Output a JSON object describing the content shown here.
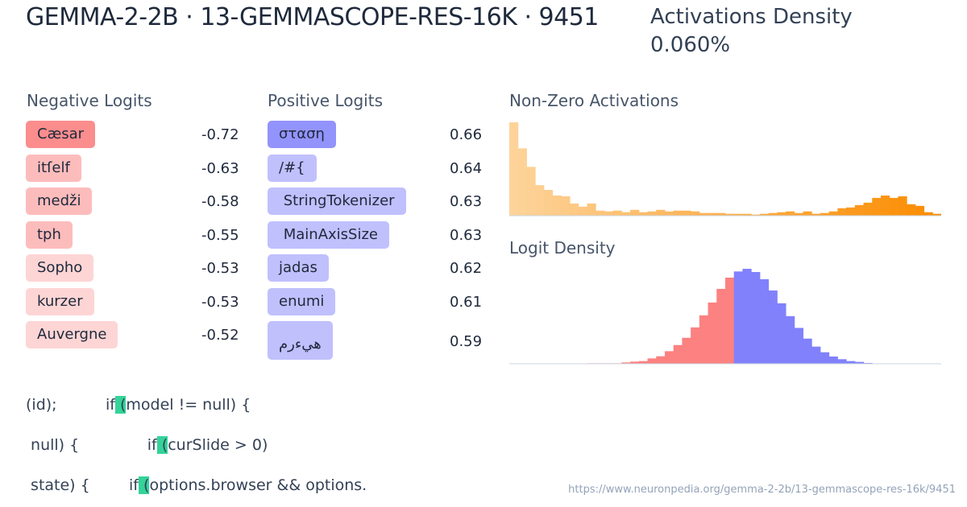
{
  "header": {
    "title": "GEMMA-2-2B · 13-GEMMASCOPE-RES-16K · 9451",
    "density_label": "Activations Density",
    "density_value": "0.060%"
  },
  "negative": {
    "label": "Negative Logits",
    "items": [
      {
        "token": "Cæsar",
        "value": "-0.72",
        "color": "#fc8d8d"
      },
      {
        "token": "itſelf",
        "value": "-0.63",
        "color": "#fdbcbc"
      },
      {
        "token": "medži",
        "value": "-0.58",
        "color": "#fdbcbc"
      },
      {
        "token": "tph",
        "value": "-0.55",
        "color": "#fdbcbc"
      },
      {
        "token": "Sopho",
        "value": "-0.53",
        "color": "#fed5d5"
      },
      {
        "token": "kurzer",
        "value": "-0.53",
        "color": "#fed5d5"
      },
      {
        "token": "Auvergne",
        "value": "-0.52",
        "color": "#fed5d5"
      }
    ]
  },
  "positive": {
    "label": "Positive Logits",
    "items": [
      {
        "token": "σταση",
        "value": "0.66",
        "color": "#9393fc"
      },
      {
        "token": "/#{",
        "value": "0.64",
        "color": "#c0c0fd"
      },
      {
        "token": " StringTokenizer",
        "value": "0.63",
        "color": "#c0c0fd"
      },
      {
        "token": " MainAxisSize",
        "value": "0.63",
        "color": "#c0c0fd"
      },
      {
        "token": "jadas",
        "value": "0.62",
        "color": "#c0c0fd"
      },
      {
        "token": "enumi",
        "value": "0.61",
        "color": "#c0c0fd"
      },
      {
        "token": "هيءرم",
        "value": "0.59",
        "color": "#c0c0fd"
      }
    ]
  },
  "activations": {
    "label": "Non-Zero Activations",
    "colors": [
      "#fdd39a",
      "#fb8c00"
    ],
    "values": [
      352,
      254,
      184,
      115,
      97,
      76,
      73,
      46,
      34,
      46,
      19,
      16,
      19,
      13,
      22,
      13,
      16,
      22,
      16,
      19,
      19,
      16,
      10,
      10,
      10,
      7,
      7,
      7,
      4,
      7,
      10,
      13,
      16,
      10,
      16,
      7,
      10,
      16,
      28,
      31,
      40,
      49,
      67,
      76,
      67,
      73,
      43,
      37,
      13,
      7
    ]
  },
  "logits": {
    "label": "Logit Density",
    "neg_color": "#fc8181",
    "pos_color": "#8181fc",
    "values": [
      0,
      0,
      0,
      0,
      0,
      0,
      0,
      0,
      0,
      2,
      2,
      2,
      2,
      5,
      8,
      10,
      20,
      28,
      47,
      70,
      97,
      136,
      181,
      229,
      280,
      322,
      345,
      355,
      343,
      316,
      274,
      226,
      178,
      134,
      94,
      64,
      43,
      27,
      17,
      10,
      7,
      3,
      1,
      1,
      1,
      1,
      0,
      0,
      0,
      0
    ]
  },
  "examples": [
    {
      "pre": "(id);          if",
      "hl": " (",
      "post": "model != null) {"
    },
    {
      "pre": " null) {              if",
      "hl": " (",
      "post": "curSlide > 0)"
    },
    {
      "pre": " state) {        if",
      "hl": " (",
      "post": "options.browser && options."
    }
  ],
  "url": "https://www.neuronpedia.org/gemma-2-2b/13-gemmascope-res-16k/9451"
}
